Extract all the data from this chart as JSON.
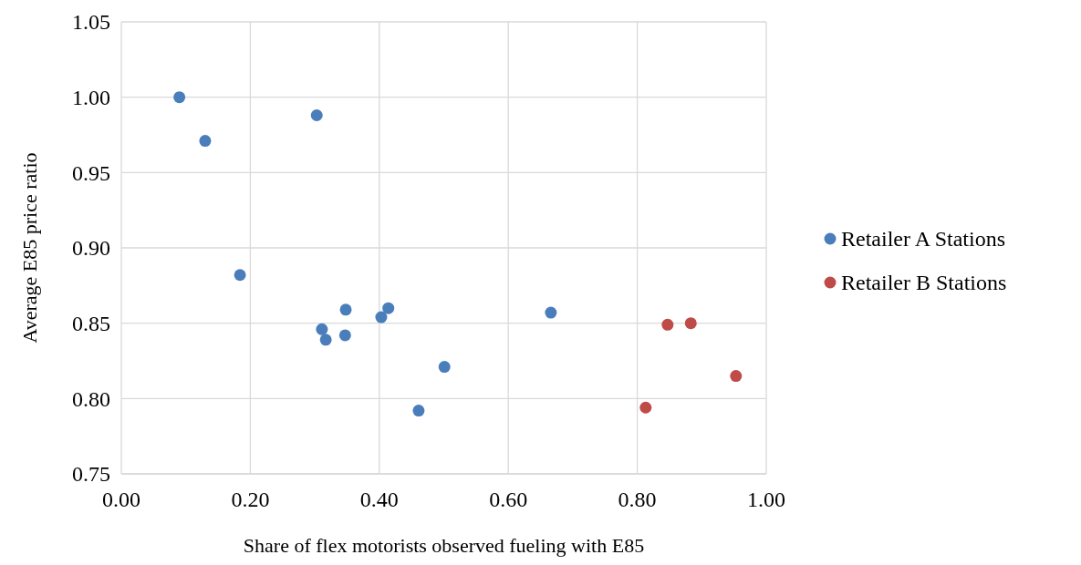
{
  "chart_data": {
    "type": "scatter",
    "xlabel": "Share of flex motorists observed fueling with E85",
    "ylabel": "Average E85 price ratio",
    "xlim": [
      0,
      1
    ],
    "xticks": [
      {
        "value": 0,
        "label": "0.00"
      },
      {
        "value": 0.2,
        "label": "0.20"
      },
      {
        "value": 0.4,
        "label": "0.40"
      },
      {
        "value": 0.6,
        "label": "0.60"
      },
      {
        "value": 0.8,
        "label": "0.80"
      },
      {
        "value": 1,
        "label": "1.00"
      }
    ],
    "ylim": [
      0.75,
      1.05
    ],
    "yticks": [
      {
        "value": 0.75,
        "label": "0.75"
      },
      {
        "value": 0.8,
        "label": "0.80"
      },
      {
        "value": 0.85,
        "label": "0.85"
      },
      {
        "value": 0.9,
        "label": "0.90"
      },
      {
        "value": 0.95,
        "label": "0.95"
      },
      {
        "value": 1,
        "label": "1.00"
      },
      {
        "value": 1.05,
        "label": "1.05"
      }
    ],
    "grid": true,
    "legend": "right",
    "marker": "circle",
    "series": [
      {
        "name": "Retailer A Stations",
        "color": "#4a7ebb",
        "x": [
          0.09,
          0.13,
          0.303,
          0.184,
          0.311,
          0.317,
          0.348,
          0.347,
          0.403,
          0.414,
          0.501,
          0.461,
          0.666
        ],
        "values": [
          1.0,
          0.971,
          0.988,
          0.882,
          0.846,
          0.839,
          0.859,
          0.842,
          0.854,
          0.86,
          0.821,
          0.792,
          0.857
        ]
      },
      {
        "name": "Retailer B Stations",
        "color": "#be4b48",
        "x": [
          0.813,
          0.847,
          0.883,
          0.953
        ],
        "values": [
          0.794,
          0.849,
          0.85,
          0.815
        ]
      }
    ]
  }
}
